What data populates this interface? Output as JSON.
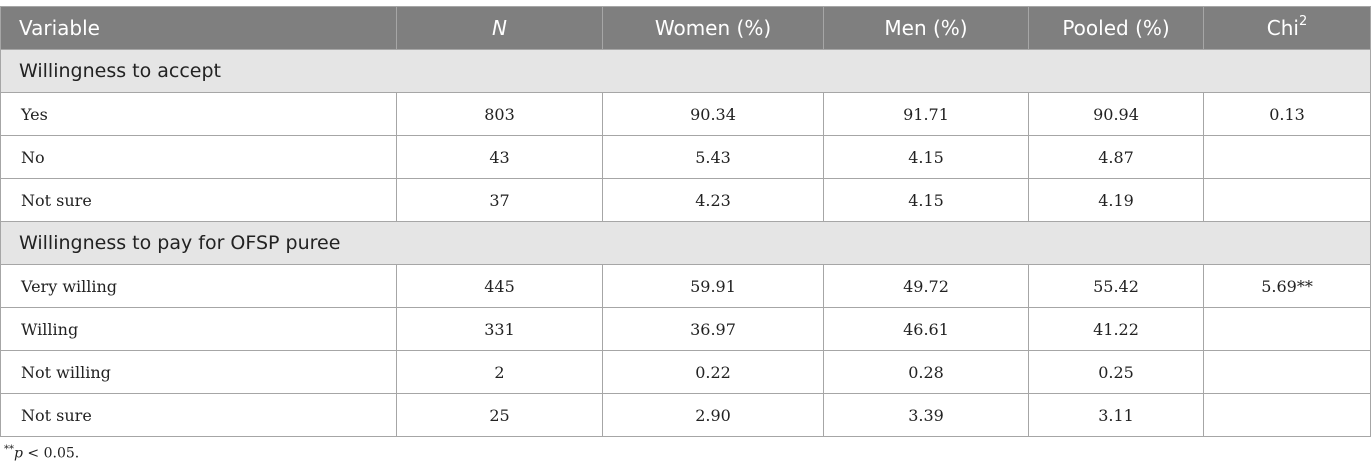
{
  "table": {
    "headers": {
      "variable": "Variable",
      "n": "N",
      "women": "Women (%)",
      "men": "Men (%)",
      "pooled": "Pooled (%)",
      "chi_base": "Chi",
      "chi_sup": "2"
    },
    "sections": [
      {
        "title": "Willingness to accept",
        "rows": [
          {
            "variable": "Yes",
            "n": "803",
            "women": "90.34",
            "men": "91.71",
            "pooled": "90.94",
            "chi": "0.13"
          },
          {
            "variable": "No",
            "n": "43",
            "women": "5.43",
            "men": "4.15",
            "pooled": "4.87",
            "chi": ""
          },
          {
            "variable": "Not sure",
            "n": "37",
            "women": "4.23",
            "men": "4.15",
            "pooled": "4.19",
            "chi": ""
          }
        ]
      },
      {
        "title": "Willingness to pay for OFSP puree",
        "rows": [
          {
            "variable": "Very willing",
            "n": "445",
            "women": "59.91",
            "men": "49.72",
            "pooled": "55.42",
            "chi": "5.69**"
          },
          {
            "variable": "Willing",
            "n": "331",
            "women": "36.97",
            "men": "46.61",
            "pooled": "41.22",
            "chi": ""
          },
          {
            "variable": "Not willing",
            "n": "2",
            "women": "0.22",
            "men": "0.28",
            "pooled": "0.25",
            "chi": ""
          },
          {
            "variable": "Not sure",
            "n": "25",
            "women": "2.90",
            "men": "3.39",
            "pooled": "3.11",
            "chi": ""
          }
        ]
      }
    ]
  },
  "footnote": {
    "stars": "**",
    "p": "p",
    "rest": " < 0.05."
  }
}
